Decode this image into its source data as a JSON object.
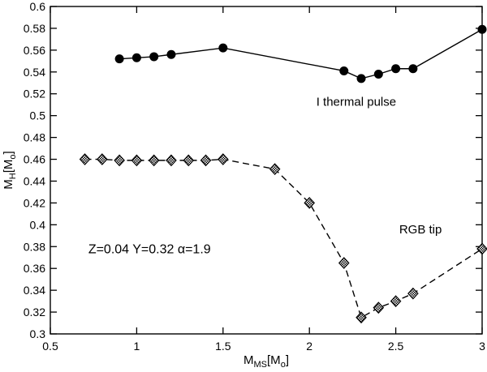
{
  "chart_data": {
    "type": "line",
    "title": "",
    "xlabel": "M_MS[M_o]",
    "ylabel": "M_H[M_o]",
    "xlabel_parts": [
      {
        "t": "M",
        "sub": false
      },
      {
        "t": "MS",
        "sub": true
      },
      {
        "t": "[M",
        "sub": false
      },
      {
        "t": "o",
        "sub": true
      },
      {
        "t": "]",
        "sub": false
      }
    ],
    "ylabel_parts": [
      {
        "t": "M",
        "sub": false
      },
      {
        "t": "H",
        "sub": true
      },
      {
        "t": "[M",
        "sub": false
      },
      {
        "t": "o",
        "sub": true
      },
      {
        "t": "]",
        "sub": false
      }
    ],
    "xlim": [
      0.5,
      3
    ],
    "ylim": [
      0.3,
      0.6
    ],
    "grid": false,
    "legend_position": "none",
    "x_ticks": [
      {
        "v": 0.5,
        "label": "0.5"
      },
      {
        "v": 1,
        "label": "1"
      },
      {
        "v": 1.5,
        "label": "1.5"
      },
      {
        "v": 2,
        "label": "2"
      },
      {
        "v": 2.5,
        "label": "2.5"
      },
      {
        "v": 3,
        "label": "3"
      }
    ],
    "y_ticks": [
      {
        "v": 0.3,
        "label": "0.3"
      },
      {
        "v": 0.32,
        "label": "0.32"
      },
      {
        "v": 0.34,
        "label": "0.34"
      },
      {
        "v": 0.36,
        "label": "0.36"
      },
      {
        "v": 0.38,
        "label": "0.38"
      },
      {
        "v": 0.4,
        "label": "0.4"
      },
      {
        "v": 0.42,
        "label": "0.42"
      },
      {
        "v": 0.44,
        "label": "0.44"
      },
      {
        "v": 0.46,
        "label": "0.46"
      },
      {
        "v": 0.48,
        "label": "0.48"
      },
      {
        "v": 0.5,
        "label": "0.5"
      },
      {
        "v": 0.52,
        "label": "0.52"
      },
      {
        "v": 0.54,
        "label": "0.54"
      },
      {
        "v": 0.56,
        "label": "0.56"
      },
      {
        "v": 0.58,
        "label": "0.58"
      },
      {
        "v": 0.6,
        "label": "0.6"
      }
    ],
    "series": [
      {
        "name": "I thermal pulse",
        "marker": "filled-circle",
        "line_style": "solid",
        "color": "#000000",
        "x": [
          0.9,
          1.0,
          1.1,
          1.2,
          1.5,
          2.2,
          2.3,
          2.4,
          2.5,
          2.6,
          3.0
        ],
        "y": [
          0.552,
          0.553,
          0.554,
          0.556,
          0.562,
          0.541,
          0.534,
          0.538,
          0.543,
          0.543,
          0.579
        ]
      },
      {
        "name": "RGB tip",
        "marker": "hatched-diamond",
        "line_style": "dashed",
        "color": "#000000",
        "x": [
          0.7,
          0.8,
          0.9,
          1.0,
          1.1,
          1.2,
          1.3,
          1.4,
          1.5,
          1.8,
          2.0,
          2.2,
          2.3,
          2.4,
          2.5,
          2.6,
          3.0
        ],
        "y": [
          0.46,
          0.46,
          0.459,
          0.459,
          0.459,
          0.459,
          0.459,
          0.459,
          0.46,
          0.451,
          0.42,
          0.365,
          0.315,
          0.324,
          0.33,
          0.337,
          0.378
        ]
      }
    ],
    "annotations": [
      {
        "text": "I thermal pulse",
        "x": 2.04,
        "y": 0.509,
        "size": 15,
        "anchor": "start"
      },
      {
        "text": "RGB tip",
        "x": 2.52,
        "y": 0.392,
        "size": 15,
        "anchor": "start"
      },
      {
        "text": "Z=0.04 Y=0.32 α=1.9",
        "x": 0.72,
        "y": 0.374,
        "size": 16,
        "anchor": "start"
      }
    ]
  }
}
